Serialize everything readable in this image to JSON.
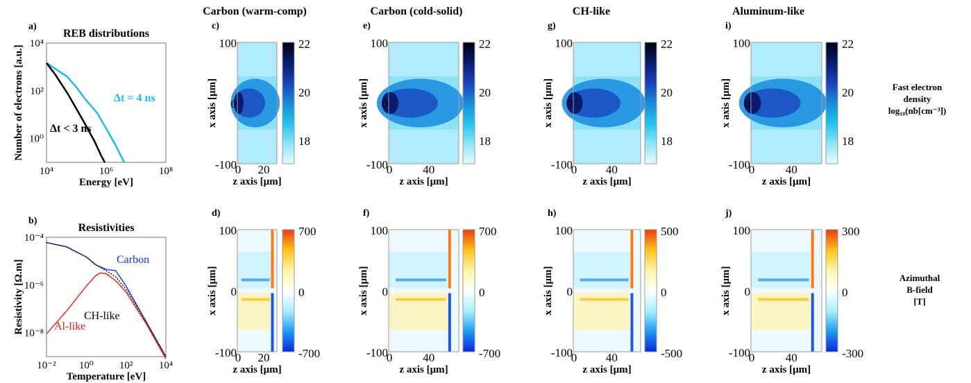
{
  "column_titles": [
    "Carbon (warm-comp)",
    "Carbon (cold-solid)",
    "CH-like",
    "Aluminum-like"
  ],
  "row_labels": {
    "density": {
      "line1": "Fast electron",
      "line2": "density",
      "line3": "log₁₀(nb[cm⁻³])"
    },
    "bfield": {
      "line1": "Azimuthal",
      "line2": "B-field",
      "line3": "[T]"
    }
  },
  "colors": {
    "density_colormap": [
      "#e8fbfe",
      "#8ee4f6",
      "#22c2ec",
      "#1a8ad8",
      "#1842b8",
      "#0a1a6e",
      "#000010"
    ],
    "bfield_colormap": [
      "#0a28d8",
      "#1f9af0",
      "#a8f0ff",
      "#ffffff",
      "#fff6a8",
      "#ffc21a",
      "#e83a10"
    ],
    "carbon": "#1432d2",
    "ch": "#000000",
    "al": "#e82010",
    "reb_4ns": "#21b9e6",
    "reb_3ns": "#000000"
  },
  "chart_data": [
    {
      "panel": "a)",
      "type": "line",
      "title": "REB distributions",
      "xlabel": "Energy [eV]",
      "ylabel": "Number of electrons [a.u.]",
      "xscale": "log",
      "yscale": "log",
      "xlim": [
        10000,
        100000000
      ],
      "ylim": [
        0.1,
        100000
      ],
      "xticks": [
        "10⁴",
        "10⁶",
        "10⁸"
      ],
      "yticks": [
        "10⁰",
        "10²",
        "10⁴"
      ],
      "series": [
        {
          "name": "Δt = 4 ns",
          "x": [
            10000,
            20000,
            50000,
            100000,
            200000,
            500000,
            1000000,
            2000000,
            4000000
          ],
          "y": [
            10000,
            5000,
            2000,
            600,
            150,
            30,
            5,
            0.8,
            0.1
          ]
        },
        {
          "name": "Δt < 3 ns",
          "x": [
            10000,
            20000,
            50000,
            100000,
            200000,
            400000,
            700000,
            900000
          ],
          "y": [
            10000,
            2500,
            300,
            50,
            8,
            1.2,
            0.2,
            0.1
          ]
        }
      ]
    },
    {
      "panel": "b)",
      "type": "line",
      "title": "Resistivities",
      "xlabel": "Temperature [eV]",
      "ylabel": "Resistivity [Ω.m]",
      "xscale": "log",
      "yscale": "log",
      "xlim": [
        0.01,
        10000
      ],
      "ylim": [
        1e-09,
        0.0001
      ],
      "xticks": [
        "10⁻²",
        "10⁰",
        "10²",
        "10⁴"
      ],
      "yticks": [
        "10⁻⁸",
        "10⁻⁶",
        "10⁻⁴"
      ],
      "series": [
        {
          "name": "Carbon",
          "x": [
            0.01,
            0.1,
            1,
            3,
            10,
            30,
            100,
            1000,
            10000
          ],
          "y": [
            6e-05,
            4e-05,
            1.5e-05,
            7e-06,
            4.5e-06,
            4e-06,
            9e-07,
            3e-08,
            1e-09
          ]
        },
        {
          "name": "CH-like",
          "x": [
            0.01,
            0.1,
            1,
            3,
            10,
            30,
            100,
            1000,
            10000
          ],
          "y": [
            6e-05,
            4e-05,
            1.5e-05,
            7e-06,
            4e-06,
            2.2e-06,
            6.5e-07,
            3e-08,
            1e-09
          ]
        },
        {
          "name": "Al-like",
          "x": [
            0.01,
            0.1,
            1,
            3,
            5,
            10,
            30,
            100,
            1000,
            10000
          ],
          "y": [
            9e-09,
            8e-08,
            9e-07,
            2.5e-06,
            3.2e-06,
            3e-06,
            1.5e-06,
            5e-07,
            2.5e-08,
            8e-10
          ]
        }
      ]
    },
    {
      "panel": "c)",
      "type": "heatmap",
      "column": "Carbon (warm-comp)",
      "quantity": "density",
      "xlabel": "z axis [μm]",
      "ylabel": "x axis [μm]",
      "xlim": [
        0,
        30
      ],
      "ylim": [
        -100,
        100
      ],
      "xticks": [
        "0",
        "20"
      ],
      "yticks": [
        "-100",
        "0",
        "100"
      ],
      "colorbar": {
        "range": [
          17,
          22
        ],
        "ticks": [
          "22",
          "20",
          "18"
        ]
      }
    },
    {
      "panel": "e)",
      "type": "heatmap",
      "column": "Carbon (cold-solid)",
      "quantity": "density",
      "xlabel": "z axis [μm]",
      "ylabel": "x axis [μm]",
      "xlim": [
        0,
        70
      ],
      "ylim": [
        -100,
        100
      ],
      "xticks": [
        "0",
        "40"
      ],
      "yticks": [
        "-100",
        "0",
        "100"
      ],
      "colorbar": {
        "range": [
          17,
          22
        ],
        "ticks": [
          "22",
          "20",
          "18"
        ]
      }
    },
    {
      "panel": "g)",
      "type": "heatmap",
      "column": "CH-like",
      "quantity": "density",
      "xlabel": "z axis [μm]",
      "ylabel": "x axis [μm]",
      "xlim": [
        0,
        70
      ],
      "ylim": [
        -100,
        100
      ],
      "xticks": [
        "0",
        "40"
      ],
      "yticks": [
        "-100",
        "0",
        "100"
      ],
      "colorbar": {
        "range": [
          17,
          22
        ],
        "ticks": [
          "22",
          "20",
          "18"
        ]
      }
    },
    {
      "panel": "i)",
      "type": "heatmap",
      "column": "Aluminum-like",
      "quantity": "density",
      "xlabel": "z axis [μm]",
      "ylabel": "x axis [μm]",
      "xlim": [
        0,
        70
      ],
      "ylim": [
        -100,
        100
      ],
      "xticks": [
        "0",
        "40"
      ],
      "yticks": [
        "-100",
        "0",
        "100"
      ],
      "colorbar": {
        "range": [
          17,
          22
        ],
        "ticks": [
          "22",
          "20",
          "18"
        ]
      }
    },
    {
      "panel": "d)",
      "type": "heatmap",
      "column": "Carbon (warm-comp)",
      "quantity": "bfield",
      "xlabel": "z axis [μm]",
      "ylabel": "x axis [μm]",
      "xlim": [
        0,
        30
      ],
      "ylim": [
        -100,
        100
      ],
      "xticks": [
        "0",
        "20"
      ],
      "yticks": [
        "-100",
        "0",
        "100"
      ],
      "colorbar": {
        "range": [
          -700,
          700
        ],
        "ticks": [
          "700",
          "0",
          "-700"
        ]
      }
    },
    {
      "panel": "f)",
      "type": "heatmap",
      "column": "Carbon (cold-solid)",
      "quantity": "bfield",
      "xlabel": "z axis [μm]",
      "ylabel": "x axis [μm]",
      "xlim": [
        0,
        70
      ],
      "ylim": [
        -100,
        100
      ],
      "xticks": [
        "0",
        "40"
      ],
      "yticks": [
        "-100",
        "0",
        "100"
      ],
      "colorbar": {
        "range": [
          -700,
          700
        ],
        "ticks": [
          "700",
          "0",
          "-700"
        ]
      }
    },
    {
      "panel": "h)",
      "type": "heatmap",
      "column": "CH-like",
      "quantity": "bfield",
      "xlabel": "z axis [μm]",
      "ylabel": "x axis [μm]",
      "xlim": [
        0,
        70
      ],
      "ylim": [
        -100,
        100
      ],
      "xticks": [
        "0",
        "40"
      ],
      "yticks": [
        "-100",
        "0",
        "100"
      ],
      "colorbar": {
        "range": [
          -500,
          500
        ],
        "ticks": [
          "500",
          "0",
          "-500"
        ]
      }
    },
    {
      "panel": "j)",
      "type": "heatmap",
      "column": "Aluminum-like",
      "quantity": "bfield",
      "xlabel": "z axis [μm]",
      "ylabel": "x axis [μm]",
      "xlim": [
        0,
        70
      ],
      "ylim": [
        -100,
        100
      ],
      "xticks": [
        "0",
        "40"
      ],
      "yticks": [
        "-100",
        "0",
        "100"
      ],
      "colorbar": {
        "range": [
          -300,
          300
        ],
        "ticks": [
          "300",
          "0",
          "-300"
        ]
      }
    }
  ]
}
